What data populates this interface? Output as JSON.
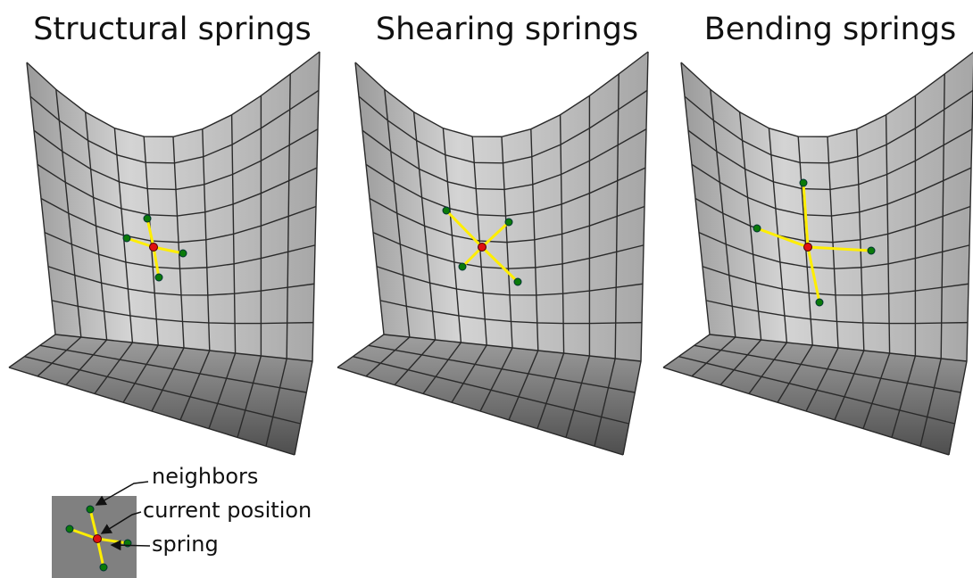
{
  "panels": [
    {
      "title": "Structural springs"
    },
    {
      "title": "Shearing springs"
    },
    {
      "title": "Bending springs"
    }
  ],
  "legend": {
    "labels": [
      "neighbors",
      "current position",
      "spring"
    ]
  }
}
